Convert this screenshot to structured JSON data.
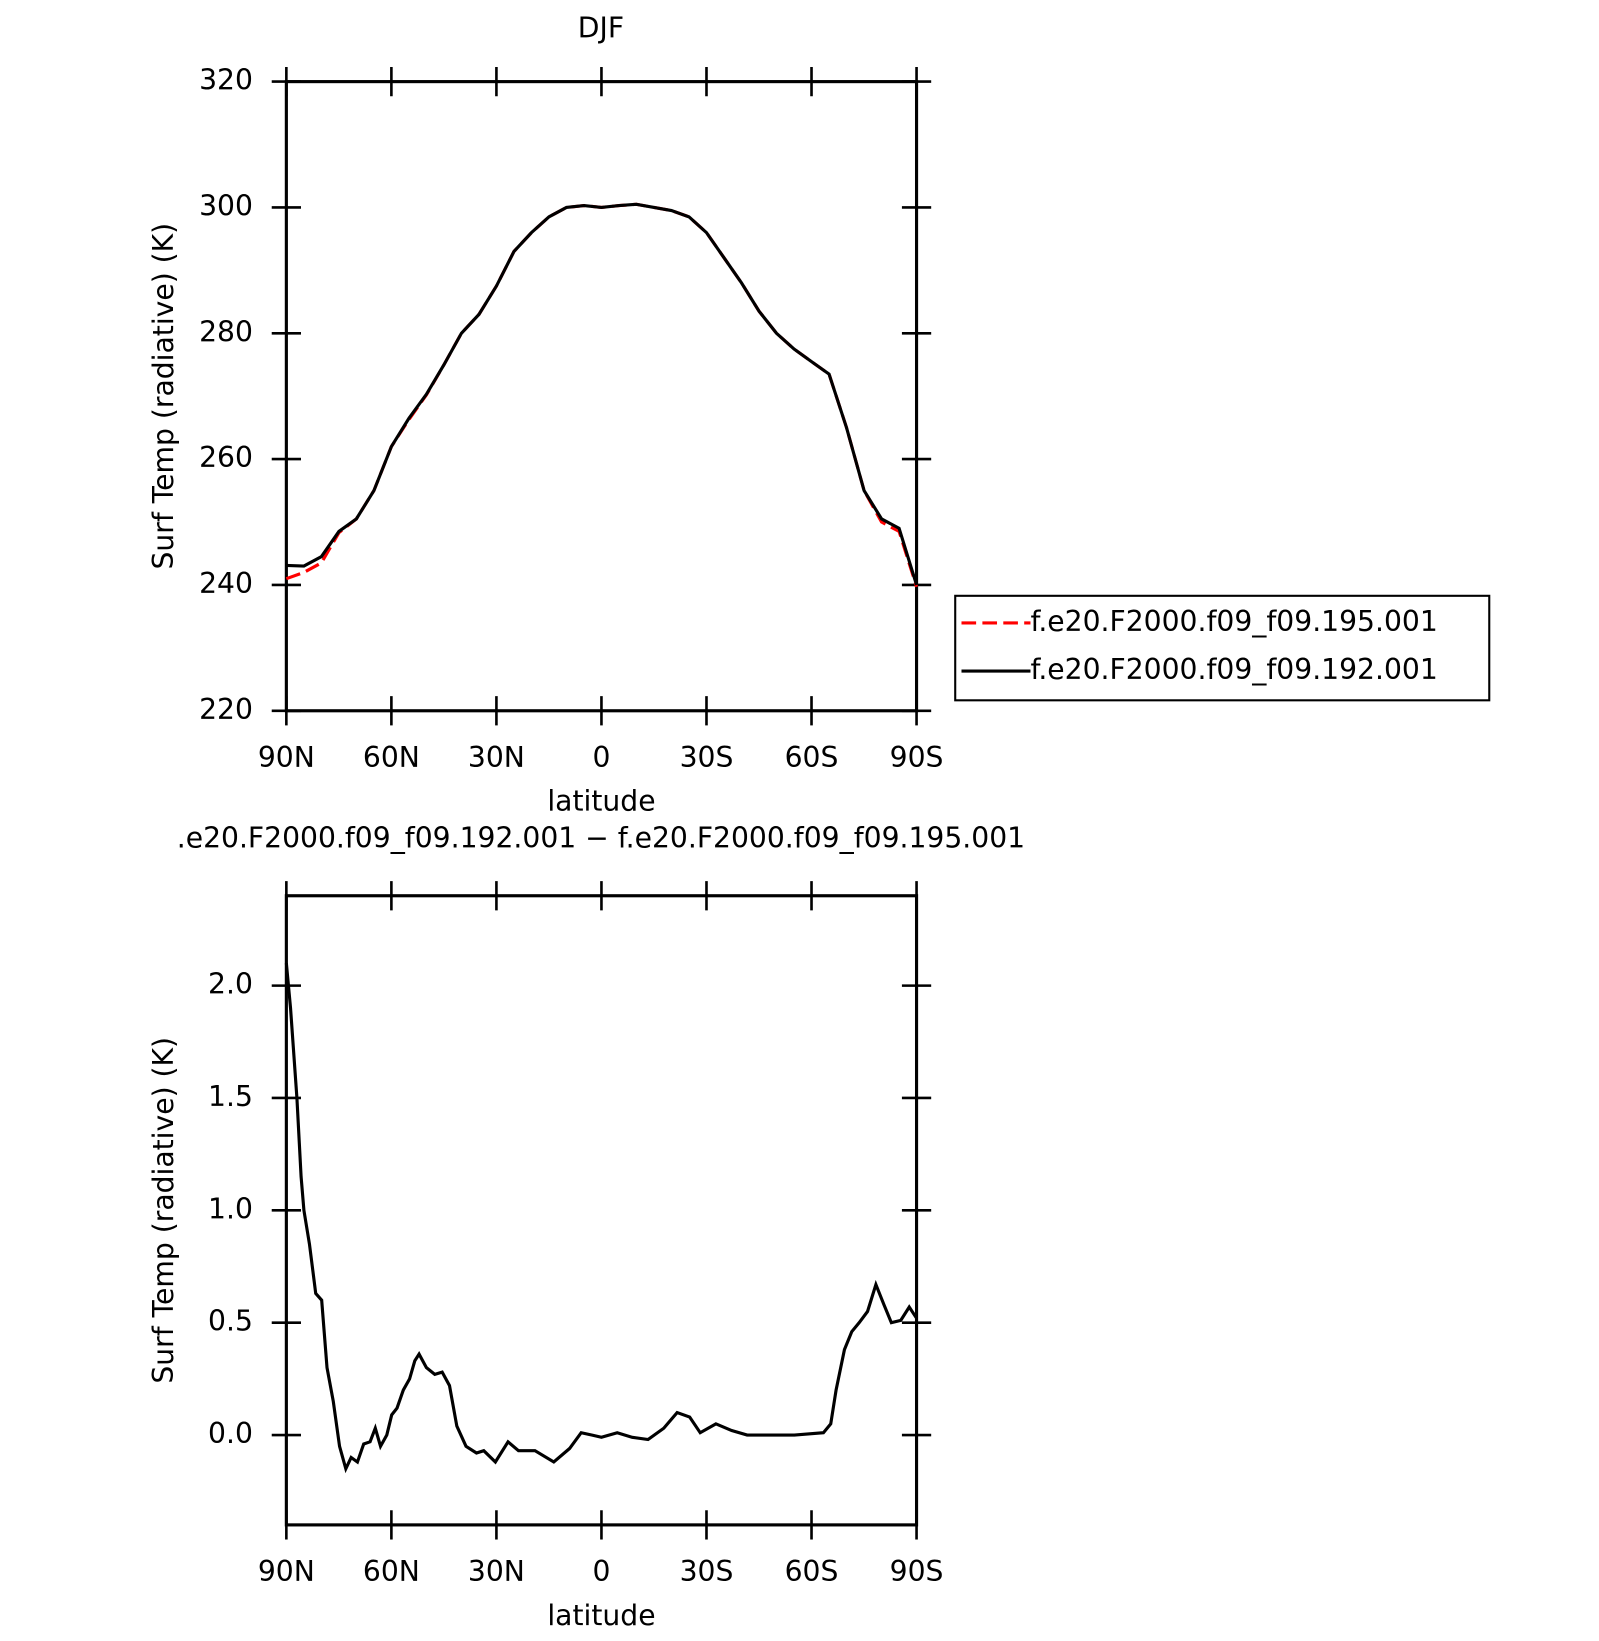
{
  "chart_data": [
    {
      "type": "line",
      "title": "DJF",
      "xlabel": "latitude",
      "ylabel": "Surf Temp (radiative) (K)",
      "xlim": [
        90,
        -90
      ],
      "ylim": [
        220,
        320
      ],
      "xticks": [
        {
          "value": 90,
          "label": "90N"
        },
        {
          "value": 60,
          "label": "60N"
        },
        {
          "value": 30,
          "label": "30N"
        },
        0,
        {
          "value": -30,
          "label": "30S"
        },
        {
          "value": -60,
          "label": "60S"
        },
        {
          "value": -90,
          "label": "90S"
        }
      ],
      "yticks": [
        220,
        240,
        260,
        280,
        300,
        320
      ],
      "legend": "right",
      "x": [
        90,
        85,
        80,
        75,
        70,
        65,
        60,
        55,
        50,
        45,
        40,
        35,
        30,
        25,
        20,
        15,
        10,
        5,
        0,
        -5,
        -10,
        -15,
        -20,
        -25,
        -30,
        -35,
        -40,
        -45,
        -50,
        -55,
        -60,
        -65,
        -70,
        -75,
        -80,
        -85,
        -90
      ],
      "series": [
        {
          "name": "f.e20.F2000.f09_f09.195.001",
          "color": "#ff0000",
          "dashed": true,
          "values": [
            241,
            242,
            243.5,
            248.3,
            250.5,
            255,
            262,
            266.3,
            270.2,
            275,
            280,
            283,
            287.5,
            293,
            296,
            298.5,
            300,
            300.3,
            300,
            300.3,
            300.5,
            300,
            299.5,
            298.5,
            296,
            292,
            288,
            283.5,
            280,
            277.5,
            275.5,
            273.5,
            265,
            255,
            250,
            248.5,
            239.7
          ]
        },
        {
          "name": "f.e20.F2000.f09_f09.192.001",
          "color": "#000000",
          "dashed": false,
          "values": [
            243.1,
            243,
            244.5,
            248.5,
            250.5,
            255,
            262,
            266.5,
            270.3,
            275,
            280,
            283,
            287.5,
            293,
            296,
            298.5,
            300,
            300.3,
            300,
            300.3,
            300.5,
            300,
            299.5,
            298.5,
            296,
            292,
            288,
            283.5,
            280,
            277.5,
            275.5,
            273.5,
            265,
            255,
            250.5,
            249,
            240
          ]
        }
      ]
    },
    {
      "type": "line",
      "title": ".e20.F2000.f09_f09.192.001 − f.e20.F2000.f09_f09.195.001",
      "xlabel": "latitude",
      "ylabel": "Surf Temp (radiative) (K)",
      "xlim": [
        90,
        -90
      ],
      "ylim": [
        -0.4,
        2.4
      ],
      "xticks": [
        {
          "value": 90,
          "label": "90N"
        },
        {
          "value": 60,
          "label": "60N"
        },
        {
          "value": 30,
          "label": "30N"
        },
        0,
        {
          "value": -30,
          "label": "30S"
        },
        {
          "value": -60,
          "label": "60S"
        },
        {
          "value": -90,
          "label": "90S"
        }
      ],
      "yticks": [
        {
          "value": 0,
          "label": "0.0"
        },
        0.5,
        {
          "value": 1,
          "label": "1.0"
        },
        1.5,
        {
          "value": 2,
          "label": "2.0"
        }
      ],
      "x": [
        90,
        88.8,
        87,
        85.8,
        85,
        83.4,
        81.6,
        79.9,
        78.4,
        76.6,
        74.8,
        73,
        71.5,
        69.7,
        67.9,
        66.1,
        64.6,
        63.1,
        61.3,
        59.9,
        58.4,
        56.6,
        54.8,
        53.3,
        52.1,
        50,
        47.6,
        45.5,
        43.4,
        41.3,
        38.7,
        35.7,
        33.6,
        30.3,
        26.7,
        23.7,
        19,
        13.6,
        9.1,
        5.8,
        2.8,
        0,
        -4.5,
        -8.8,
        -13.3,
        -17.8,
        -21.6,
        -25.2,
        -28.2,
        -32.7,
        -37.2,
        -41.6,
        -46.1,
        -55.1,
        -63.4,
        -65.5,
        -67,
        -69.4,
        -71.5,
        -73.6,
        -76,
        -78.4,
        -80.7,
        -82.8,
        -85.5,
        -87.9,
        -90
      ],
      "series": [
        {
          "color": "#000000",
          "values": [
            2.1,
            1.9,
            1.5,
            1.15,
            1.0,
            0.85,
            0.63,
            0.6,
            0.3,
            0.15,
            -0.05,
            -0.15,
            -0.1,
            -0.12,
            -0.04,
            -0.03,
            0.03,
            -0.05,
            0.0,
            0.09,
            0.12,
            0.2,
            0.25,
            0.33,
            0.36,
            0.3,
            0.27,
            0.28,
            0.22,
            0.04,
            -0.05,
            -0.08,
            -0.07,
            -0.12,
            -0.03,
            -0.07,
            -0.07,
            -0.12,
            -0.06,
            0.01,
            0.0,
            -0.01,
            0.01,
            -0.01,
            -0.02,
            0.03,
            0.1,
            0.08,
            0.01,
            0.05,
            0.02,
            0.0,
            0.0,
            0.0,
            0.01,
            0.05,
            0.2,
            0.38,
            0.46,
            0.5,
            0.55,
            0.67,
            0.58,
            0.5,
            0.51,
            0.57,
            0.52
          ]
        }
      ]
    }
  ]
}
